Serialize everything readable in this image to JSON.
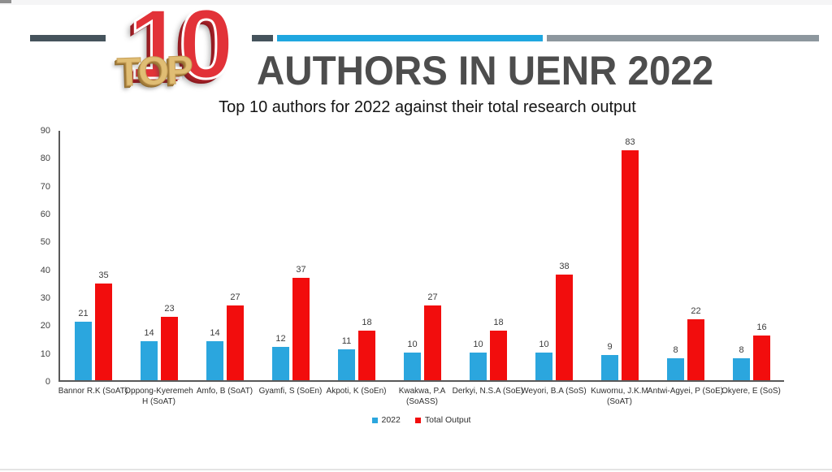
{
  "page": {
    "title": "AUTHORS IN UENR 2022",
    "subtitle": "Top 10 authors for 2022 against their total research output",
    "logo": {
      "ten": "10",
      "top": "TOP"
    }
  },
  "colors": {
    "series_2022": "#2ba6de",
    "series_total_output": "#f20d0d",
    "title_text": "#4d4d4d",
    "deco_dark": "#45535c",
    "deco_cyan": "#1fa7e0",
    "deco_gray": "#8d979e",
    "axis_line": "#595959"
  },
  "chart_data": {
    "type": "bar",
    "title": "Top 10 authors for 2022 against their total research output",
    "categories": [
      "Bannor R.K (SoAT)",
      "Oppong-Kyeremeh\nH (SoAT)",
      "Amfo, B (SoAT)",
      "Gyamfi, S (SoEn)",
      "Akpoti, K (SoEn)",
      "Kwakwa, P.A\n(SoASS)",
      "Derkyi, N.S.A (SoE)",
      "Weyori, B.A (SoS)",
      "Kuwornu, J.K.M\n(SoAT)",
      "Antwi-Agyei, P (SoE)",
      "Okyere, E (SoS)"
    ],
    "series": [
      {
        "name": "2022",
        "color": "#2ba6de",
        "values": [
          21,
          14,
          14,
          12,
          11,
          10,
          10,
          10,
          9,
          8,
          8
        ]
      },
      {
        "name": "Total Output",
        "color": "#f20d0d",
        "values": [
          35,
          23,
          27,
          37,
          18,
          27,
          18,
          38,
          83,
          22,
          16
        ]
      }
    ],
    "xlabel": "",
    "ylabel": "",
    "ylim": [
      0,
      90
    ],
    "ytick_step": 10,
    "grid": false,
    "legend_position": "bottom"
  }
}
